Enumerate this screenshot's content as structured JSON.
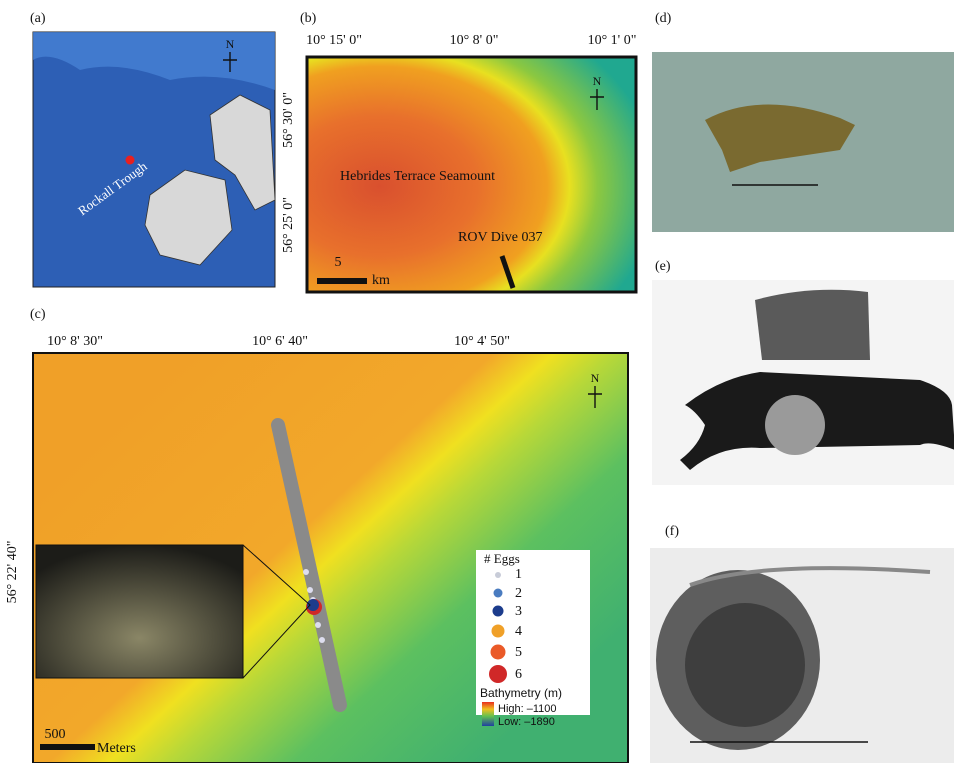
{
  "panels": {
    "a": {
      "label": "(a)",
      "north": "N",
      "place": "Rockall Trough"
    },
    "b": {
      "label": "(b)",
      "lon_labels": [
        "10° 15' 0\"",
        "10° 8' 0\"",
        "10° 1' 0\""
      ],
      "lat_labels": [
        "56° 30' 0\"",
        "56° 25' 0\""
      ],
      "north": "N",
      "seamount": "Hebrides Terrace Seamount",
      "dive": "ROV Dive 037",
      "scale_value": "5",
      "scale_unit": "km"
    },
    "c": {
      "label": "(c)",
      "lon_labels": [
        "10° 8' 30\"",
        "10° 6' 40\"",
        "10° 4' 50\""
      ],
      "lat_label": "56° 22' 40\"",
      "north": "N",
      "legend": {
        "title": "# Eggs",
        "items": [
          "1",
          "2",
          "3",
          "4",
          "5",
          "6"
        ]
      },
      "bathymetry": {
        "title": "Bathymetry (m)",
        "high": "High: –1100",
        "low": "Low: –1890"
      },
      "scale_value": "500",
      "scale_unit": "Meters"
    },
    "d": {
      "label": "(d)"
    },
    "e": {
      "label": "(e)"
    },
    "f": {
      "label": "(f)"
    }
  }
}
